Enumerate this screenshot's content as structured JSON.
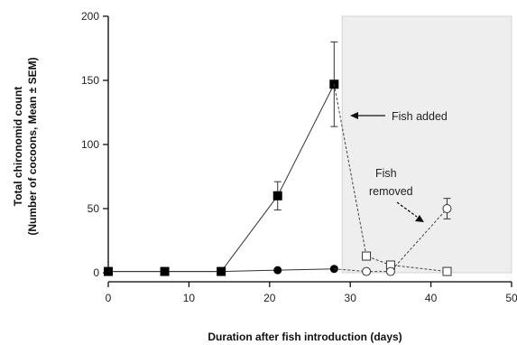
{
  "chart_data": {
    "type": "line",
    "title": "",
    "xlabel": "Duration after fish introduction (days)",
    "ylabel_lines": [
      "Total chironomid count",
      "(Number of cocoons, Mean ± SEM)"
    ],
    "xlim": [
      0,
      50
    ],
    "ylim": [
      0,
      200
    ],
    "xticks": [
      0,
      10,
      20,
      30,
      40,
      50
    ],
    "yticks": [
      0,
      50,
      100,
      150,
      200
    ],
    "grid": false,
    "legend": "none",
    "shaded_region": {
      "x_from": 29,
      "x_to": 50,
      "color": "#eeeeee"
    },
    "series": [
      {
        "marker": "filled-square",
        "line": "solid",
        "x": [
          0,
          7,
          14,
          21,
          28
        ],
        "y": [
          1,
          1,
          1,
          60,
          147
        ],
        "err": [
          0,
          0,
          0,
          11,
          33
        ]
      },
      {
        "marker": "filled-circle",
        "line": "solid",
        "x": [
          0,
          7,
          14,
          21,
          28
        ],
        "y": [
          1,
          1,
          1,
          2,
          3
        ],
        "err": [
          0,
          0,
          0,
          0,
          0
        ]
      },
      {
        "marker": "open-square",
        "line": "dashed",
        "x": [
          28,
          32,
          35,
          42
        ],
        "y": [
          147,
          13,
          6,
          1
        ],
        "err": [
          0,
          0,
          0,
          0
        ],
        "draw_marker_from": 1
      },
      {
        "marker": "open-circle",
        "line": "dashed",
        "x": [
          28,
          32,
          35,
          42
        ],
        "y": [
          3,
          1,
          1,
          50
        ],
        "err": [
          0,
          0,
          0,
          8
        ],
        "draw_marker_from": 1
      }
    ],
    "annotations": [
      {
        "text": "Fish added"
      },
      {
        "text_lines": [
          "Fish",
          "removed"
        ]
      }
    ]
  }
}
